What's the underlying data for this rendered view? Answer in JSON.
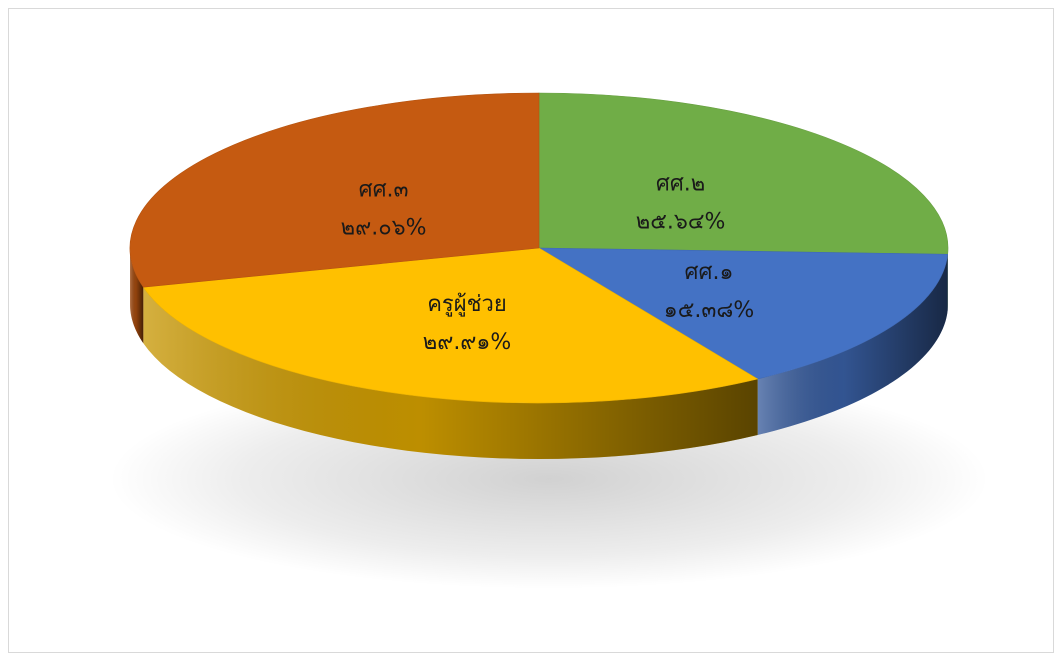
{
  "chart_data": {
    "type": "pie",
    "style": "3d",
    "title": "",
    "slices": [
      {
        "label": "ศศ.๒",
        "value": 25.64,
        "value_text": "๒๕.๖๔%",
        "color": "#70AD47"
      },
      {
        "label": "ศศ.๑",
        "value": 15.38,
        "value_text": "๑๕.๓๘%",
        "color": "#4472C4"
      },
      {
        "label": "ครูผู้ช่วย",
        "value": 29.91,
        "value_text": "๒๙.๙๑%",
        "color": "#FFC000"
      },
      {
        "label": "ศศ.๓",
        "value": 29.06,
        "value_text": "๒๙.๐๖%",
        "color": "#C55A11"
      }
    ]
  }
}
